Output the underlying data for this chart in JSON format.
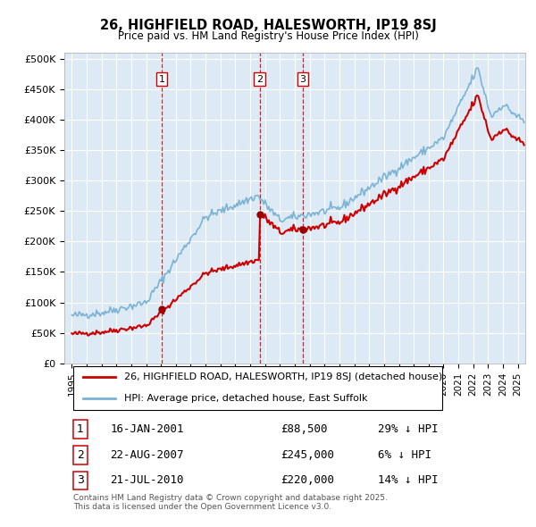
{
  "title": "26, HIGHFIELD ROAD, HALESWORTH, IP19 8SJ",
  "subtitle": "Price paid vs. HM Land Registry's House Price Index (HPI)",
  "yticks": [
    0,
    50000,
    100000,
    150000,
    200000,
    250000,
    300000,
    350000,
    400000,
    450000,
    500000
  ],
  "ytick_labels": [
    "£0",
    "£50K",
    "£100K",
    "£150K",
    "£200K",
    "£250K",
    "£300K",
    "£350K",
    "£400K",
    "£450K",
    "£500K"
  ],
  "hpi_color": "#7ab3d4",
  "price_color": "#cc0000",
  "vline_color": "#cc0000",
  "plot_bg_color": "#ddeaf5",
  "fig_bg_color": "#ffffff",
  "grid_color": "#ffffff",
  "transactions": [
    {
      "num": 1,
      "date": "16-JAN-2001",
      "price": 88500,
      "year": 2001.05,
      "pct": "29%",
      "dir": "↓"
    },
    {
      "num": 2,
      "date": "22-AUG-2007",
      "price": 245000,
      "year": 2007.64,
      "pct": "6%",
      "dir": "↓"
    },
    {
      "num": 3,
      "date": "21-JUL-2010",
      "price": 220000,
      "year": 2010.55,
      "pct": "14%",
      "dir": "↓"
    }
  ],
  "legend_label_price": "26, HIGHFIELD ROAD, HALESWORTH, IP19 8SJ (detached house)",
  "legend_label_hpi": "HPI: Average price, detached house, East Suffolk",
  "footer": "Contains HM Land Registry data © Crown copyright and database right 2025.\nThis data is licensed under the Open Government Licence v3.0.",
  "xmin": 1994.5,
  "xmax": 2025.5,
  "ymin": 0,
  "ymax": 510000
}
